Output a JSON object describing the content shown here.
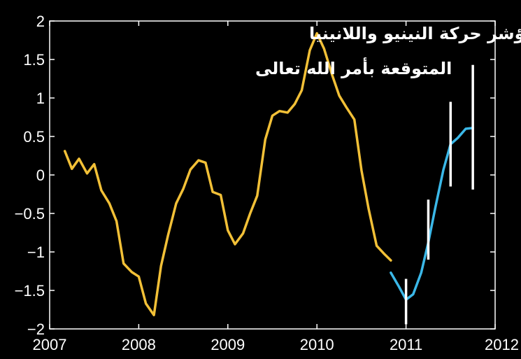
{
  "chart_data": {
    "type": "line",
    "title_lines": [
      "مؤشر حركة النينيو واللانينيا",
      "المتوقعة بأمر الله تعالى"
    ],
    "xlabel": "",
    "ylabel": "",
    "xlim": [
      2007,
      2012
    ],
    "ylim": [
      -2,
      2
    ],
    "x_ticks": [
      2007,
      2008,
      2009,
      2010,
      2011,
      2012
    ],
    "y_ticks": [
      2,
      1.5,
      1,
      0.5,
      0,
      -0.5,
      -1,
      -1.5,
      -2
    ],
    "y_tick_labels": [
      "2",
      "1.5",
      "1",
      "0.5",
      "0",
      "−0.5",
      "−1",
      "−1.5",
      "−2"
    ],
    "grid": false,
    "legend": "none",
    "series": [
      {
        "color": "#f2c037",
        "points": [
          [
            2007.17,
            0.31
          ],
          [
            2007.25,
            0.08
          ],
          [
            2007.33,
            0.21
          ],
          [
            2007.42,
            0.02
          ],
          [
            2007.5,
            0.14
          ],
          [
            2007.58,
            -0.2
          ],
          [
            2007.67,
            -0.37
          ],
          [
            2007.75,
            -0.6
          ],
          [
            2007.83,
            -1.15
          ],
          [
            2007.92,
            -1.26
          ],
          [
            2008.0,
            -1.32
          ],
          [
            2008.08,
            -1.67
          ],
          [
            2008.17,
            -1.82
          ],
          [
            2008.25,
            -1.18
          ],
          [
            2008.33,
            -0.78
          ],
          [
            2008.42,
            -0.37
          ],
          [
            2008.5,
            -0.18
          ],
          [
            2008.58,
            0.07
          ],
          [
            2008.67,
            0.19
          ],
          [
            2008.75,
            0.16
          ],
          [
            2008.83,
            -0.22
          ],
          [
            2008.92,
            -0.26
          ],
          [
            2009.0,
            -0.72
          ],
          [
            2009.08,
            -0.9
          ],
          [
            2009.17,
            -0.76
          ],
          [
            2009.25,
            -0.5
          ],
          [
            2009.33,
            -0.27
          ],
          [
            2009.42,
            0.46
          ],
          [
            2009.5,
            0.77
          ],
          [
            2009.58,
            0.83
          ],
          [
            2009.67,
            0.81
          ],
          [
            2009.75,
            0.92
          ],
          [
            2009.83,
            1.1
          ],
          [
            2009.92,
            1.62
          ],
          [
            2010.0,
            1.84
          ],
          [
            2010.08,
            1.64
          ],
          [
            2010.17,
            1.3
          ],
          [
            2010.25,
            1.03
          ],
          [
            2010.33,
            0.88
          ],
          [
            2010.42,
            0.72
          ],
          [
            2010.5,
            0.06
          ],
          [
            2010.58,
            -0.44
          ],
          [
            2010.67,
            -0.92
          ],
          [
            2010.75,
            -1.02
          ],
          [
            2010.83,
            -1.11
          ]
        ]
      },
      {
        "color": "#3bb8e8",
        "points": [
          [
            2010.83,
            -1.27
          ],
          [
            2010.92,
            -1.45
          ],
          [
            2011.0,
            -1.62
          ],
          [
            2011.08,
            -1.55
          ],
          [
            2011.17,
            -1.27
          ],
          [
            2011.25,
            -0.88
          ],
          [
            2011.33,
            -0.42
          ],
          [
            2011.42,
            0.07
          ],
          [
            2011.5,
            0.4
          ],
          [
            2011.58,
            0.48
          ],
          [
            2011.67,
            0.6
          ],
          [
            2011.75,
            0.61
          ]
        ]
      }
    ],
    "error_bars": {
      "color": "#ffffff",
      "items": [
        {
          "x": 2011.0,
          "low": -1.94,
          "high": -1.35
        },
        {
          "x": 2011.25,
          "low": -1.1,
          "high": -0.32
        },
        {
          "x": 2011.5,
          "low": -0.15,
          "high": 0.95
        },
        {
          "x": 2011.75,
          "low": -0.19,
          "high": 1.43
        }
      ]
    }
  }
}
